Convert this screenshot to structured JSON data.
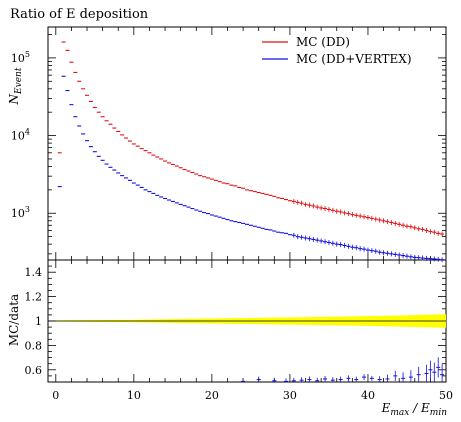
{
  "chart_data": [
    {
      "type": "scatter",
      "panel": "main",
      "title": "Ratio of E deposition",
      "xlabel": "E_max / E_min",
      "ylabel": "N_Event",
      "ylog": true,
      "ylim": [
        250,
        250000
      ],
      "xlim": [
        -1,
        50
      ],
      "yticks": [
        {
          "v": 1000,
          "label": "10",
          "exp": "3"
        },
        {
          "v": 10000,
          "label": "10",
          "exp": "4"
        },
        {
          "v": 100000,
          "label": "10",
          "exp": "5"
        }
      ],
      "legend": "top-right",
      "series": [
        {
          "name": "MC (DD)",
          "color": "#e01010",
          "x": [
            0.5,
            1,
            1.5,
            2,
            2.5,
            3,
            3.5,
            4,
            4.5,
            5,
            5.5,
            6,
            6.5,
            7,
            7.5,
            8,
            8.5,
            9,
            9.5,
            10,
            10.5,
            11,
            11.5,
            12,
            12.5,
            13,
            13.5,
            14,
            14.5,
            15,
            15.5,
            16,
            16.5,
            17,
            17.5,
            18,
            18.5,
            19,
            19.5,
            20,
            20.5,
            21,
            21.5,
            22,
            22.5,
            23,
            23.5,
            24,
            24.5,
            25,
            25.5,
            26,
            26.5,
            27,
            27.5,
            28,
            28.5,
            29,
            29.5,
            30,
            30.5,
            31,
            31.5,
            32,
            32.5,
            33,
            33.5,
            34,
            34.5,
            35,
            35.5,
            36,
            36.5,
            37,
            37.5,
            38,
            38.5,
            39,
            39.5,
            40,
            40.5,
            41,
            41.5,
            42,
            42.5,
            43,
            43.5,
            44,
            44.5,
            45,
            45.5,
            46,
            46.5,
            47,
            47.5,
            48,
            48.5,
            49,
            49.5
          ],
          "y": [
            6000,
            160000,
            125000,
            88000,
            65000,
            50000,
            40000,
            33000,
            27500,
            23000,
            20000,
            17500,
            15500,
            14000,
            12500,
            11300,
            10200,
            9300,
            8500,
            7800,
            7300,
            6800,
            6400,
            6000,
            5600,
            5300,
            5000,
            4700,
            4450,
            4250,
            4050,
            3850,
            3650,
            3500,
            3350,
            3200,
            3050,
            2950,
            2850,
            2750,
            2650,
            2550,
            2450,
            2400,
            2300,
            2250,
            2150,
            2100,
            2000,
            1950,
            1900,
            1850,
            1800,
            1750,
            1700,
            1650,
            1580,
            1550,
            1500,
            1450,
            1420,
            1380,
            1350,
            1300,
            1270,
            1240,
            1200,
            1170,
            1150,
            1120,
            1090,
            1060,
            1040,
            1010,
            990,
            960,
            940,
            920,
            900,
            880,
            860,
            840,
            820,
            800,
            780,
            760,
            740,
            720,
            700,
            680,
            670,
            650,
            630,
            620,
            600,
            580,
            570,
            550,
            540
          ]
        },
        {
          "name": "MC (DD+VERTEX)",
          "color": "#1010e0",
          "x": [
            0.5,
            1,
            1.5,
            2,
            2.5,
            3,
            3.5,
            4,
            4.5,
            5,
            5.5,
            6,
            6.5,
            7,
            7.5,
            8,
            8.5,
            9,
            9.5,
            10,
            10.5,
            11,
            11.5,
            12,
            12.5,
            13,
            13.5,
            14,
            14.5,
            15,
            15.5,
            16,
            16.5,
            17,
            17.5,
            18,
            18.5,
            19,
            19.5,
            20,
            20.5,
            21,
            21.5,
            22,
            22.5,
            23,
            23.5,
            24,
            24.5,
            25,
            25.5,
            26,
            26.5,
            27,
            27.5,
            28,
            28.5,
            29,
            29.5,
            30,
            30.5,
            31,
            31.5,
            32,
            32.5,
            33,
            33.5,
            34,
            34.5,
            35,
            35.5,
            36,
            36.5,
            37,
            37.5,
            38,
            38.5,
            39,
            39.5,
            40,
            40.5,
            41,
            41.5,
            42,
            42.5,
            43,
            43.5,
            44,
            44.5,
            45,
            45.5,
            46,
            46.5,
            47,
            47.5,
            48,
            48.5,
            49,
            49.5
          ],
          "y": [
            2200,
            58000,
            38000,
            25000,
            17500,
            13300,
            10500,
            8600,
            7200,
            6200,
            5400,
            4800,
            4300,
            3900,
            3600,
            3300,
            3050,
            2850,
            2650,
            2450,
            2300,
            2150,
            2000,
            1900,
            1800,
            1700,
            1620,
            1550,
            1480,
            1420,
            1360,
            1300,
            1250,
            1200,
            1150,
            1100,
            1060,
            1020,
            990,
            950,
            920,
            890,
            860,
            830,
            800,
            780,
            760,
            740,
            720,
            700,
            680,
            660,
            640,
            620,
            610,
            590,
            570,
            560,
            550,
            530,
            520,
            500,
            490,
            480,
            470,
            460,
            450,
            440,
            430,
            420,
            410,
            400,
            395,
            385,
            375,
            365,
            360,
            350,
            345,
            335,
            330,
            325,
            315,
            310,
            305,
            300,
            295,
            290,
            285,
            280,
            275,
            270,
            268,
            265,
            262,
            260,
            258,
            255,
            252
          ]
        }
      ]
    },
    {
      "type": "scatter",
      "panel": "ratio",
      "ylabel": "MC/data",
      "xlabel": "E_max / E_min",
      "xlim": [
        -1,
        50
      ],
      "ylim": [
        0.5,
        1.5
      ],
      "yticks": [
        {
          "v": 0.6,
          "label": "0.6"
        },
        {
          "v": 0.8,
          "label": "0.8"
        },
        {
          "v": 1.0,
          "label": "1"
        },
        {
          "v": 1.2,
          "label": "1.2"
        },
        {
          "v": 1.4,
          "label": "1.4"
        }
      ],
      "xticks": [
        {
          "v": 0,
          "label": "0"
        },
        {
          "v": 10,
          "label": "10"
        },
        {
          "v": 20,
          "label": "20"
        },
        {
          "v": 30,
          "label": "30"
        },
        {
          "v": 40,
          "label": "40"
        },
        {
          "v": 50,
          "label": "50"
        }
      ],
      "band": {
        "color": "#ffff00",
        "x": [
          0,
          10,
          20,
          30,
          40,
          50
        ],
        "half_width": [
          0.005,
          0.01,
          0.02,
          0.03,
          0.04,
          0.055
        ]
      },
      "series": [
        {
          "name": "MC (DD+VERTEX)",
          "color": "#1010e0",
          "x": [
            24,
            26,
            28,
            29.5,
            30.5,
            31.5,
            32.5,
            33.5,
            34.5,
            35.5,
            36.5,
            37.5,
            38.5,
            39.5,
            40.5,
            41.5,
            42.5,
            43.5,
            44.5,
            45.5,
            46.5,
            47.5,
            48,
            48.5,
            49,
            49.5
          ],
          "y": [
            0.505,
            0.52,
            0.51,
            0.505,
            0.51,
            0.515,
            0.52,
            0.51,
            0.525,
            0.515,
            0.52,
            0.53,
            0.52,
            0.54,
            0.53,
            0.52,
            0.525,
            0.55,
            0.53,
            0.54,
            0.56,
            0.57,
            0.6,
            0.58,
            0.62,
            0.56
          ]
        }
      ]
    }
  ]
}
